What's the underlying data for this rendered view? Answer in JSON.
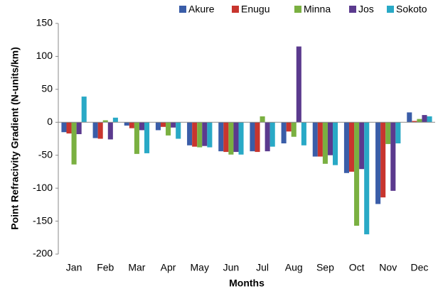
{
  "chart_data": {
    "type": "bar",
    "x_label": "Months",
    "y_label": "Point Refracivity Gradient (N-units/km)",
    "categories": [
      "Jan",
      "Feb",
      "Mar",
      "Apr",
      "May",
      "Jun",
      "Jul",
      "Aug",
      "Sep",
      "Oct",
      "Nov",
      "Dec"
    ],
    "series": [
      {
        "name": "Akure",
        "color": "#3a5da8",
        "values": [
          -15,
          -24,
          -5,
          -12,
          -35,
          -44,
          -44,
          -32,
          -52,
          -77,
          -124,
          15
        ]
      },
      {
        "name": "Enugu",
        "color": "#c8352e",
        "values": [
          -17,
          -25,
          -9,
          -7,
          -37,
          -45,
          -45,
          -14,
          -52,
          -75,
          -114,
          2
        ]
      },
      {
        "name": "Minna",
        "color": "#7ab041",
        "values": [
          -64,
          3,
          -48,
          -20,
          -38,
          -49,
          9,
          -22,
          -63,
          -157,
          -33,
          5
        ]
      },
      {
        "name": "Jos",
        "color": "#5b3a8e",
        "values": [
          -18,
          -26,
          -12,
          -8,
          -36,
          -45,
          -44,
          115,
          -50,
          -71,
          -104,
          11
        ]
      },
      {
        "name": "Sokoto",
        "color": "#29a9c6",
        "values": [
          39,
          7,
          -47,
          -25,
          -38,
          -49,
          -37,
          -35,
          -65,
          -170,
          -32,
          9
        ]
      }
    ],
    "ylim": [
      -200,
      150
    ],
    "yticks": [
      -200,
      -150,
      -100,
      -50,
      0,
      50,
      100,
      150
    ],
    "grid": false,
    "legend": "top-right"
  }
}
